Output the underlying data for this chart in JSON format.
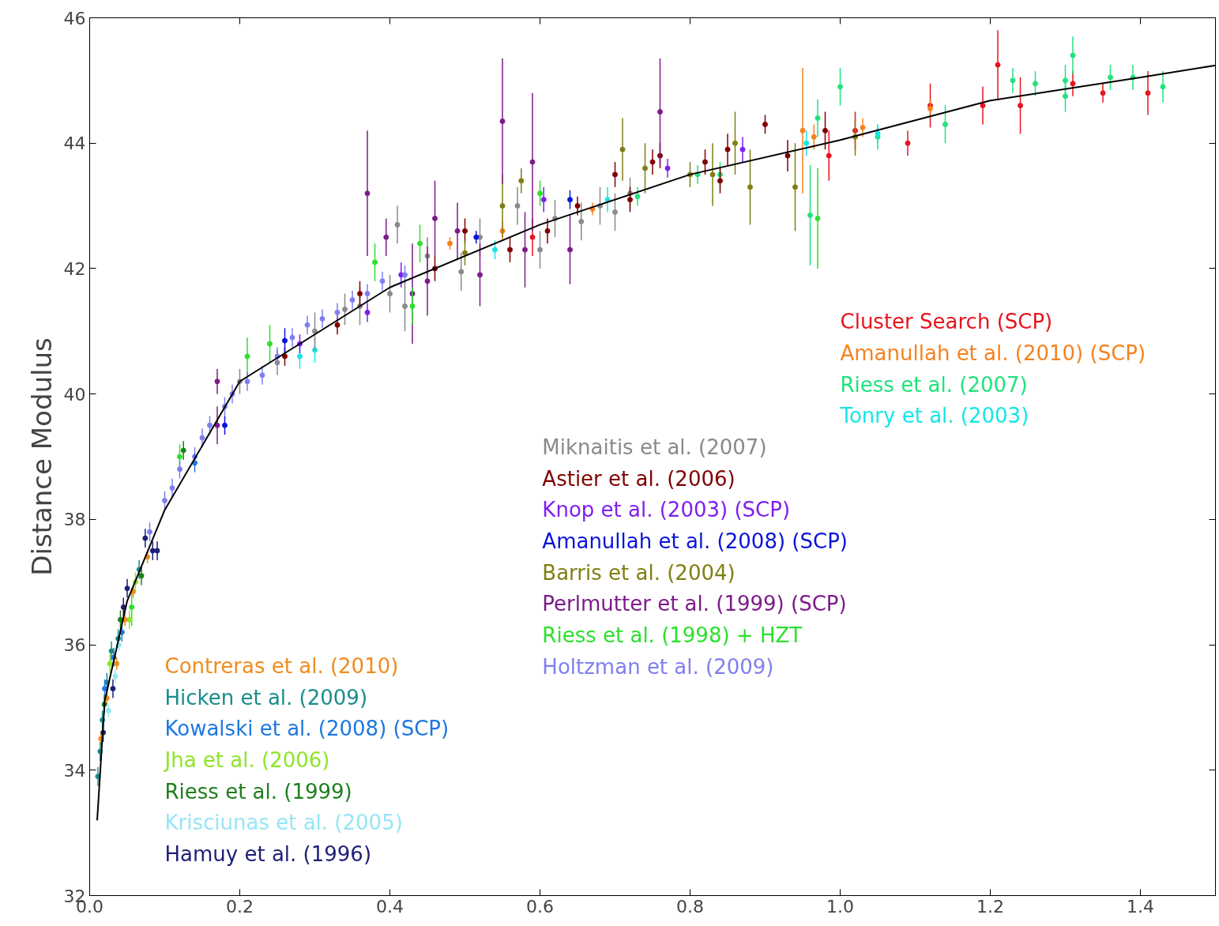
{
  "chart_data": {
    "type": "scatter",
    "ylabel": "Distance Modulus",
    "xlim": [
      0,
      1.5
    ],
    "ylim": [
      32,
      46
    ],
    "xticks": [
      {
        "value": 0,
        "label": "0.0"
      },
      {
        "value": 0.2,
        "label": "0.2"
      },
      {
        "value": 0.4,
        "label": "0.4"
      },
      {
        "value": 0.6,
        "label": "0.6"
      },
      {
        "value": 0.8,
        "label": "0.8"
      },
      {
        "value": 1.0,
        "label": "1.0"
      },
      {
        "value": 1.2,
        "label": "1.2"
      },
      {
        "value": 1.4,
        "label": "1.4"
      }
    ],
    "yticks": [
      32,
      34,
      36,
      38,
      40,
      42,
      44,
      46
    ],
    "marker": "circle",
    "grid": false,
    "series": [
      {
        "name": "Cluster Search (SCP)",
        "color": "#e8141e",
        "x": [
          1.09,
          1.12,
          1.19,
          1.21,
          1.24,
          1.31,
          1.35,
          1.41,
          0.985,
          1.02,
          0.59
        ],
        "values": [
          44.0,
          44.6,
          44.6,
          45.25,
          44.6,
          44.95,
          44.8,
          44.8,
          43.8,
          44.2,
          42.5
        ],
        "errors": [
          0.2,
          0.35,
          0.3,
          0.55,
          0.45,
          0.2,
          0.15,
          0.35,
          0.4,
          0.3,
          0.3
        ]
      },
      {
        "name": "Amanullah et al. (2010) (SCP)",
        "color": "#f5821f",
        "x": [
          0.95,
          1.03,
          1.12,
          0.55,
          0.67,
          0.48,
          0.965
        ],
        "values": [
          44.2,
          44.25,
          44.55,
          42.6,
          42.95,
          42.4,
          44.1
        ],
        "errors": [
          1.0,
          0.15,
          0.15,
          0.15,
          0.1,
          0.1,
          0.2
        ]
      },
      {
        "name": "Riess et al. (2007)",
        "color": "#22e27d",
        "x": [
          1.0,
          1.05,
          1.14,
          1.23,
          1.26,
          1.3,
          1.31,
          1.3,
          1.36,
          1.39,
          1.43,
          0.96,
          0.97,
          0.81,
          0.84,
          0.73
        ],
        "values": [
          44.9,
          44.1,
          44.3,
          45.0,
          44.95,
          45.0,
          45.4,
          44.75,
          45.05,
          45.05,
          44.9,
          42.85,
          44.4,
          43.5,
          43.5,
          43.15
        ],
        "errors": [
          0.3,
          0.2,
          0.3,
          0.2,
          0.2,
          0.25,
          0.3,
          0.25,
          0.2,
          0.2,
          0.25,
          0.8,
          0.3,
          0.15,
          0.2,
          0.15
        ]
      },
      {
        "name": "Tonry et al. (2003)",
        "color": "#16e6e6",
        "x": [
          0.955,
          1.05,
          0.69,
          0.54,
          0.3,
          0.28
        ],
        "values": [
          44.0,
          44.15,
          43.1,
          42.3,
          40.7,
          40.6
        ],
        "errors": [
          0.2,
          0.15,
          0.2,
          0.15,
          0.2,
          0.2
        ]
      },
      {
        "name": "Miknaitis et al. (2007)",
        "color": "#8a8a8a",
        "x": [
          0.2,
          0.25,
          0.3,
          0.34,
          0.36,
          0.4,
          0.42,
          0.45,
          0.495,
          0.52,
          0.57,
          0.6,
          0.62,
          0.655,
          0.68,
          0.7,
          0.72,
          0.41
        ],
        "values": [
          40.2,
          40.5,
          41.0,
          41.35,
          41.4,
          41.6,
          41.4,
          42.2,
          41.95,
          42.5,
          43.0,
          42.3,
          42.8,
          42.75,
          43.0,
          42.9,
          43.2,
          42.7
        ],
        "errors": [
          0.2,
          0.2,
          0.3,
          0.25,
          0.3,
          0.3,
          0.4,
          0.3,
          0.3,
          0.3,
          0.3,
          0.3,
          0.3,
          0.3,
          0.3,
          0.3,
          0.25,
          0.3
        ]
      },
      {
        "name": "Astier et al. (2006)",
        "color": "#800000",
        "x": [
          0.26,
          0.33,
          0.36,
          0.46,
          0.5,
          0.56,
          0.61,
          0.65,
          0.7,
          0.75,
          0.76,
          0.82,
          0.85,
          0.9,
          0.93,
          0.98,
          0.84,
          0.72
        ],
        "values": [
          40.6,
          41.1,
          41.6,
          42.0,
          42.6,
          42.3,
          42.6,
          43.0,
          43.5,
          43.7,
          43.8,
          43.7,
          43.9,
          44.3,
          43.8,
          44.2,
          43.4,
          43.1
        ],
        "errors": [
          0.15,
          0.15,
          0.2,
          0.2,
          0.2,
          0.2,
          0.2,
          0.15,
          0.2,
          0.2,
          0.2,
          0.2,
          0.25,
          0.15,
          0.25,
          0.3,
          0.2,
          0.2
        ]
      },
      {
        "name": "Knop et al. (2003) (SCP)",
        "color": "#7f1fef",
        "x": [
          0.28,
          0.37,
          0.415,
          0.605,
          0.77,
          0.87
        ],
        "values": [
          40.8,
          41.3,
          41.9,
          43.1,
          43.6,
          43.9
        ],
        "errors": [
          0.15,
          0.15,
          0.2,
          0.2,
          0.15,
          0.2
        ]
      },
      {
        "name": "Amanullah et al. (2008) (SCP)",
        "color": "#0a14d8",
        "x": [
          0.26,
          0.18,
          0.515,
          0.64
        ],
        "values": [
          40.85,
          39.5,
          42.5,
          43.1
        ],
        "errors": [
          0.2,
          0.15,
          0.1,
          0.15
        ]
      },
      {
        "name": "Barris et al. (2004)",
        "color": "#7f7f14",
        "x": [
          0.5,
          0.55,
          0.71,
          0.74,
          0.8,
          0.83,
          0.86,
          0.88,
          0.94,
          1.02,
          0.575
        ],
        "values": [
          42.25,
          43.0,
          43.9,
          43.6,
          43.5,
          43.5,
          44.0,
          43.3,
          43.3,
          44.1,
          43.4
        ],
        "errors": [
          0.2,
          0.5,
          0.5,
          0.4,
          0.2,
          0.5,
          0.5,
          0.6,
          0.7,
          0.3,
          0.2
        ]
      },
      {
        "name": "Perlmutter et al. (1999) (SCP)",
        "color": "#7d1b8a",
        "x": [
          0.17,
          0.17,
          0.37,
          0.46,
          0.49,
          0.55,
          0.59,
          0.43,
          0.64,
          0.76,
          0.395,
          0.45,
          0.52,
          0.58
        ],
        "values": [
          40.2,
          39.5,
          43.2,
          42.8,
          42.6,
          44.35,
          43.7,
          41.6,
          42.3,
          44.5,
          42.5,
          41.8,
          41.9,
          42.3
        ],
        "errors": [
          0.2,
          0.3,
          1.0,
          0.6,
          0.45,
          1.0,
          1.1,
          0.8,
          0.55,
          0.85,
          0.3,
          0.55,
          0.5,
          0.6
        ]
      },
      {
        "name": "Riess et al. (1998) + HZT",
        "color": "#2de02d",
        "x": [
          0.12,
          0.21,
          0.24,
          0.38,
          0.43,
          0.44,
          0.6,
          0.97,
          0.056
        ],
        "values": [
          39.0,
          40.6,
          40.8,
          42.1,
          41.4,
          42.4,
          43.2,
          42.8,
          36.6
        ],
        "errors": [
          0.2,
          0.3,
          0.3,
          0.3,
          0.3,
          0.3,
          0.2,
          0.8,
          0.3
        ]
      },
      {
        "name": "Holtzman et al. (2009)",
        "color": "#7f7ff0",
        "x": [
          0.08,
          0.1,
          0.11,
          0.12,
          0.14,
          0.15,
          0.16,
          0.18,
          0.19,
          0.21,
          0.23,
          0.25,
          0.27,
          0.29,
          0.31,
          0.33,
          0.35,
          0.37,
          0.39,
          0.42
        ],
        "values": [
          37.8,
          38.3,
          38.5,
          38.8,
          39.0,
          39.3,
          39.5,
          39.8,
          40.0,
          40.2,
          40.3,
          40.6,
          40.9,
          41.1,
          41.2,
          41.3,
          41.5,
          41.6,
          41.8,
          41.9
        ],
        "errors": [
          0.15,
          0.15,
          0.15,
          0.15,
          0.15,
          0.15,
          0.15,
          0.15,
          0.15,
          0.15,
          0.15,
          0.15,
          0.15,
          0.15,
          0.15,
          0.15,
          0.15,
          0.15,
          0.15,
          0.15
        ]
      },
      {
        "name": "Contreras et al. (2010)",
        "color": "#f08c1e",
        "x": [
          0.015,
          0.023,
          0.036,
          0.047,
          0.058,
          0.077
        ],
        "values": [
          34.5,
          35.15,
          35.7,
          36.4,
          36.85,
          37.4
        ],
        "errors": [
          0.1,
          0.1,
          0.1,
          0.1,
          0.1,
          0.1
        ]
      },
      {
        "name": "Hicken et al. (2009)",
        "color": "#1a8c8c",
        "x": [
          0.011,
          0.014,
          0.017,
          0.023,
          0.029,
          0.038,
          0.066
        ],
        "values": [
          33.9,
          34.3,
          34.8,
          35.4,
          35.9,
          36.1,
          37.2
        ],
        "errors": [
          0.15,
          0.15,
          0.15,
          0.15,
          0.15,
          0.15,
          0.15
        ]
      },
      {
        "name": "Kowalski et al. (2008) (SCP)",
        "color": "#1e78e0",
        "x": [
          0.02,
          0.032,
          0.043,
          0.14
        ],
        "values": [
          35.3,
          35.8,
          36.2,
          38.9
        ],
        "errors": [
          0.15,
          0.15,
          0.15,
          0.15
        ]
      },
      {
        "name": "Jha et al. (2006)",
        "color": "#8ce628",
        "x": [
          0.027,
          0.053,
          0.061
        ],
        "values": [
          35.7,
          36.4,
          37.0
        ],
        "errors": [
          0.15,
          0.15,
          0.15
        ]
      },
      {
        "name": "Riess et al. (1999)",
        "color": "#1e7f1e",
        "x": [
          0.0195,
          0.041,
          0.069,
          0.125
        ],
        "values": [
          35.05,
          36.4,
          37.1,
          39.1
        ],
        "errors": [
          0.15,
          0.15,
          0.15,
          0.15
        ]
      },
      {
        "name": "Krisciunas et al. (2005)",
        "color": "#96e6f5",
        "x": [
          0.025,
          0.034,
          0.039
        ],
        "values": [
          34.95,
          35.5,
          36.0
        ],
        "errors": [
          0.1,
          0.1,
          0.1
        ]
      },
      {
        "name": "Hamuy et al. (1996)",
        "color": "#1e1e78",
        "x": [
          0.018,
          0.031,
          0.045,
          0.05,
          0.074,
          0.084,
          0.09
        ],
        "values": [
          34.6,
          35.3,
          36.6,
          36.9,
          37.7,
          37.5,
          37.5
        ],
        "errors": [
          0.15,
          0.15,
          0.15,
          0.15,
          0.15,
          0.15,
          0.15
        ]
      },
      {
        "type": "line",
        "marker": "none",
        "color": "#000000",
        "x": [
          0.01,
          0.02,
          0.05,
          0.1,
          0.2,
          0.4,
          0.6,
          0.8,
          1.0,
          1.2,
          1.4,
          1.5
        ],
        "values": [
          33.2,
          35.1,
          36.7,
          38.15,
          40.2,
          41.7,
          42.7,
          43.5,
          44.05,
          44.68,
          45.05,
          45.24
        ]
      }
    ]
  }
}
